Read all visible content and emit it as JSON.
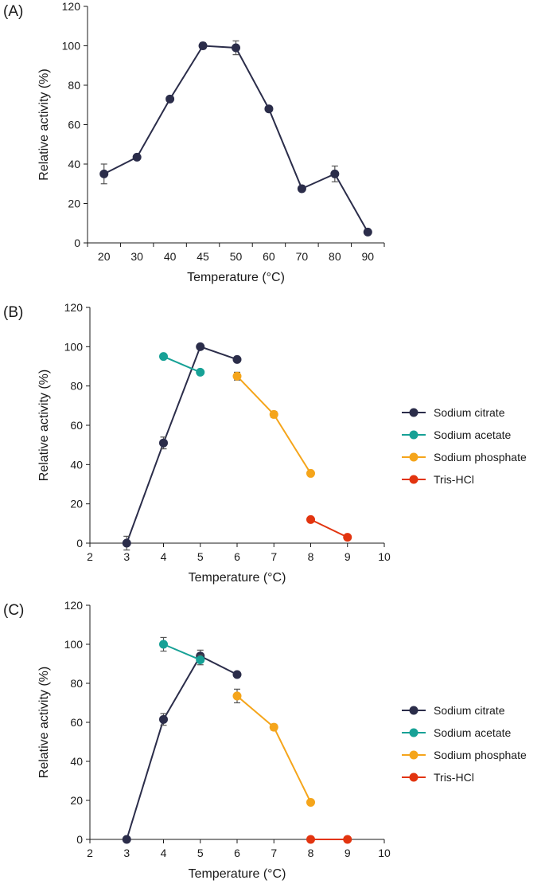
{
  "chart_data": [
    {
      "type": "line",
      "panel_label": "(A)",
      "xlabel": "Temperature (°C)",
      "ylabel": "Relative activity (%)",
      "ylim": [
        0,
        120
      ],
      "yticks": [
        0,
        20,
        40,
        60,
        80,
        100,
        120
      ],
      "categories": [
        "20",
        "30",
        "40",
        "45",
        "50",
        "60",
        "70",
        "80",
        "90"
      ],
      "series": [
        {
          "name": "Temperature",
          "color": "#2b2d4a",
          "values": [
            35,
            43.5,
            73,
            100,
            99,
            68,
            27.5,
            35,
            5.5
          ],
          "errors": [
            5,
            1,
            1,
            1.5,
            3.5,
            1,
            1,
            4,
            1
          ]
        }
      ],
      "legend": []
    },
    {
      "type": "line",
      "panel_label": "(B)",
      "xlabel": "Temperature (°C)",
      "ylabel": "Relative activity (%)",
      "xlim": [
        2,
        10
      ],
      "xticks": [
        2,
        3,
        4,
        5,
        6,
        7,
        8,
        9,
        10
      ],
      "ylim": [
        0,
        120
      ],
      "yticks": [
        0,
        20,
        40,
        60,
        80,
        100,
        120
      ],
      "series": [
        {
          "name": "Sodium citrate",
          "color": "#2b2d4a",
          "x": [
            3,
            4,
            5,
            6
          ],
          "values": [
            0,
            51,
            100,
            93.5
          ],
          "errors": [
            3.5,
            3,
            0,
            0
          ]
        },
        {
          "name": "Sodium acetate",
          "color": "#17a196",
          "x": [
            4,
            5
          ],
          "values": [
            95,
            87
          ],
          "errors": [
            0,
            0
          ]
        },
        {
          "name": "Sodium phosphate",
          "color": "#f5a51b",
          "x": [
            6,
            7,
            8
          ],
          "values": [
            85,
            65.5,
            35.5
          ],
          "errors": [
            2,
            1.5,
            0
          ]
        },
        {
          "name": "Tris-HCl",
          "color": "#e2340f",
          "x": [
            8,
            9
          ],
          "values": [
            12,
            3
          ],
          "errors": [
            0,
            0
          ]
        }
      ],
      "legend_position": "right"
    },
    {
      "type": "line",
      "panel_label": "(C)",
      "xlabel": "Temperature (°C)",
      "ylabel": "Relative activity (%)",
      "xlim": [
        2,
        10
      ],
      "xticks": [
        2,
        3,
        4,
        5,
        6,
        7,
        8,
        9,
        10
      ],
      "ylim": [
        0,
        120
      ],
      "yticks": [
        0,
        20,
        40,
        60,
        80,
        100,
        120
      ],
      "series": [
        {
          "name": "Sodium citrate",
          "color": "#2b2d4a",
          "x": [
            3,
            4,
            5,
            6
          ],
          "values": [
            0,
            61.5,
            94,
            84.5
          ],
          "errors": [
            0,
            3,
            3,
            0
          ]
        },
        {
          "name": "Sodium acetate",
          "color": "#17a196",
          "x": [
            4,
            5
          ],
          "values": [
            100,
            92
          ],
          "errors": [
            3.5,
            2.5
          ]
        },
        {
          "name": "Sodium phosphate",
          "color": "#f5a51b",
          "x": [
            6,
            7,
            8
          ],
          "values": [
            73.5,
            57.5,
            19
          ],
          "errors": [
            3.5,
            1.5,
            0
          ]
        },
        {
          "name": "Tris-HCl",
          "color": "#e2340f",
          "x": [
            8,
            9
          ],
          "values": [
            0,
            0
          ],
          "errors": [
            0,
            0
          ]
        }
      ],
      "legend_position": "right"
    }
  ]
}
